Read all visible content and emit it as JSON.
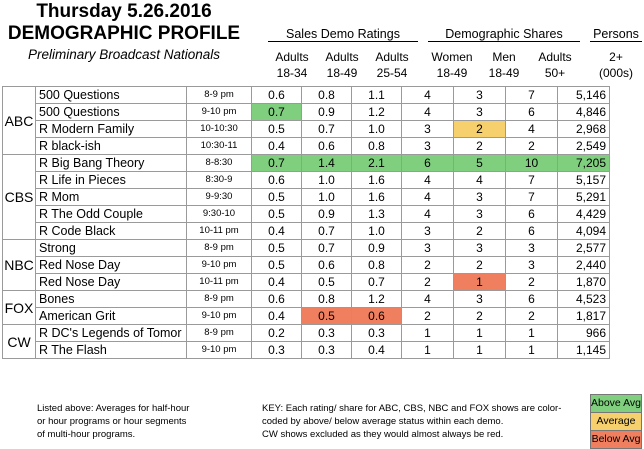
{
  "title": {
    "line1": "Thursday 5.26.2016",
    "line2": "DEMOGRAPHIC PROFILE",
    "line3": "Preliminary Broadcast Nationals"
  },
  "groups": {
    "sales": "Sales Demo Ratings",
    "shares": "Demographic Shares",
    "persons": "Persons"
  },
  "columns": [
    {
      "top": "Adults",
      "bot": "18-34"
    },
    {
      "top": "Adults",
      "bot": "18-49"
    },
    {
      "top": "Adults",
      "bot": "25-54"
    },
    {
      "top": "Women",
      "bot": "18-49"
    },
    {
      "top": "Men",
      "bot": "18-49"
    },
    {
      "top": "Adults",
      "bot": "50+"
    },
    {
      "top": "2+",
      "bot": "(000s)"
    }
  ],
  "networks": [
    {
      "name": "ABC",
      "rows": [
        {
          "show": "500 Questions",
          "slot": "8-9 pm",
          "vals": [
            "0.6",
            "0.8",
            "1.1",
            "4",
            "3",
            "7",
            "5,146"
          ],
          "col": [
            "",
            "",
            "",
            "",
            "",
            "",
            ""
          ]
        },
        {
          "show": "500 Questions",
          "slot": "9-10 pm",
          "vals": [
            "0.7",
            "0.9",
            "1.2",
            "4",
            "3",
            "6",
            "4,846"
          ],
          "col": [
            "hi",
            "",
            "",
            "",
            "",
            "",
            ""
          ]
        },
        {
          "show": "R Modern Family",
          "slot": "10-10:30",
          "vals": [
            "0.5",
            "0.7",
            "1.0",
            "3",
            "2",
            "4",
            "2,968"
          ],
          "col": [
            "",
            "",
            "",
            "",
            "mid",
            "",
            ""
          ]
        },
        {
          "show": "R black-ish",
          "slot": "10:30-11",
          "vals": [
            "0.4",
            "0.6",
            "0.8",
            "3",
            "2",
            "2",
            "2,549"
          ],
          "col": [
            "",
            "",
            "",
            "",
            "",
            "",
            ""
          ]
        }
      ]
    },
    {
      "name": "CBS",
      "rows": [
        {
          "show": "R Big Bang Theory",
          "slot": "8-8:30",
          "vals": [
            "0.7",
            "1.4",
            "2.1",
            "6",
            "5",
            "10",
            "7,205"
          ],
          "col": [
            "hi",
            "hi",
            "hi",
            "hi",
            "hi",
            "hi",
            "hi"
          ]
        },
        {
          "show": "R Life in Pieces",
          "slot": "8:30-9",
          "vals": [
            "0.6",
            "1.0",
            "1.6",
            "4",
            "4",
            "7",
            "5,157"
          ],
          "col": [
            "",
            "",
            "",
            "",
            "",
            "",
            ""
          ]
        },
        {
          "show": "R Mom",
          "slot": "9-9:30",
          "vals": [
            "0.5",
            "1.0",
            "1.6",
            "4",
            "3",
            "7",
            "5,291"
          ],
          "col": [
            "",
            "",
            "",
            "",
            "",
            "",
            ""
          ]
        },
        {
          "show": "R The Odd Couple",
          "slot": "9:30-10",
          "vals": [
            "0.5",
            "0.9",
            "1.3",
            "4",
            "3",
            "6",
            "4,429"
          ],
          "col": [
            "",
            "",
            "",
            "",
            "",
            "",
            ""
          ]
        },
        {
          "show": "R Code Black",
          "slot": "10-11 pm",
          "vals": [
            "0.4",
            "0.7",
            "1.0",
            "3",
            "2",
            "6",
            "4,094"
          ],
          "col": [
            "",
            "",
            "",
            "",
            "",
            "",
            ""
          ]
        }
      ]
    },
    {
      "name": "NBC",
      "rows": [
        {
          "show": "Strong",
          "slot": "8-9 pm",
          "vals": [
            "0.5",
            "0.7",
            "0.9",
            "3",
            "3",
            "3",
            "2,577"
          ],
          "col": [
            "",
            "",
            "",
            "",
            "",
            "",
            ""
          ]
        },
        {
          "show": "Red Nose Day",
          "slot": "9-10 pm",
          "vals": [
            "0.5",
            "0.6",
            "0.8",
            "2",
            "2",
            "3",
            "2,440"
          ],
          "col": [
            "",
            "",
            "",
            "",
            "",
            "",
            ""
          ]
        },
        {
          "show": "Red Nose Day",
          "slot": "10-11 pm",
          "vals": [
            "0.4",
            "0.5",
            "0.7",
            "2",
            "1",
            "2",
            "1,870"
          ],
          "col": [
            "",
            "",
            "",
            "",
            "lo",
            "",
            ""
          ]
        }
      ]
    },
    {
      "name": "FOX",
      "rows": [
        {
          "show": "Bones",
          "slot": "8-9 pm",
          "vals": [
            "0.6",
            "0.8",
            "1.2",
            "4",
            "3",
            "6",
            "4,523"
          ],
          "col": [
            "",
            "",
            "",
            "",
            "",
            "",
            ""
          ]
        },
        {
          "show": "American Grit",
          "slot": "9-10 pm",
          "vals": [
            "0.4",
            "0.5",
            "0.6",
            "2",
            "2",
            "2",
            "1,817"
          ],
          "col": [
            "",
            "lo",
            "lo",
            "",
            "",
            "",
            ""
          ]
        }
      ]
    },
    {
      "name": "CW",
      "rows": [
        {
          "show": "R DC's Legends of Tomor",
          "slot": "8-9 pm",
          "vals": [
            "0.2",
            "0.3",
            "0.3",
            "1",
            "1",
            "1",
            "966"
          ],
          "col": [
            "",
            "",
            "",
            "",
            "",
            "",
            ""
          ]
        },
        {
          "show": "R The Flash",
          "slot": "9-10 pm",
          "vals": [
            "0.3",
            "0.3",
            "0.4",
            "1",
            "1",
            "1",
            "1,145"
          ],
          "col": [
            "",
            "",
            "",
            "",
            "",
            "",
            ""
          ]
        }
      ]
    }
  ],
  "footer": {
    "left": [
      "Listed above: Averages for half-hour",
      "or hour programs or hour segments",
      "of multi-hour programs."
    ],
    "key": [
      "KEY: Each rating/ share for ABC, CBS, NBC and FOX shows are color-",
      "coded by above/ below average status within each demo.",
      "CW shows excluded as they would almost always be red."
    ]
  },
  "legend": {
    "above": "Above Avg",
    "avg": "Average",
    "below": "Below Avg"
  },
  "colors": {
    "above": "#7fcf7f",
    "average": "#f7d06e",
    "below": "#ef7f5e"
  }
}
